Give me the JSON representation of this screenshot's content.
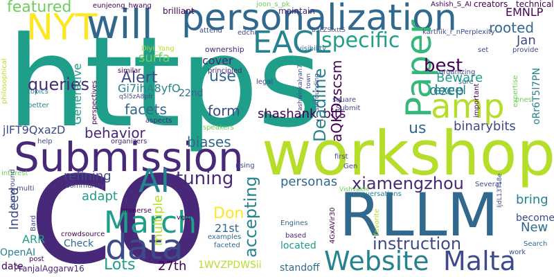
{
  "words": [
    "https",
    "co",
    "workshop",
    "Submission",
    "personalization",
    "RLLM",
    "Website",
    "Malta",
    "data",
    "will",
    "AI",
    "Paper",
    "March",
    "amp",
    "EACL",
    "NYT",
    "tuning",
    "instruction",
    "specific",
    "xiamengzhou",
    "featured",
    "queries",
    "best",
    "Alert",
    "Don",
    "behavior",
    "facets",
    "shashank_bits",
    "accepting",
    "Lots",
    "27th",
    "cover",
    "use",
    "form",
    "biases",
    "personas",
    "refining",
    "adapt",
    "multiple",
    "Deadline",
    "aQKDzscsm",
    "Beware",
    "excel",
    "deep",
    "rooted",
    "Jan",
    "EMNLP",
    "binarybits",
    "us",
    "bring",
    "Indeed",
    "ARR",
    "Check",
    "OpenAI",
    "date",
    "New",
    "become",
    "located",
    "standoff",
    "1WVZPDWSii",
    "PranjalAggarw16",
    "21st",
    "22nd",
    "jlFT9QxazD",
    "Gi7ihA8yfO",
    "Generative",
    "surfa",
    "creators",
    "technical",
    "maintain",
    "brilliant",
    "joon_s_pk",
    "Ashish_S_AI",
    "eunjeong_hwang",
    "karthik_r_nPerplexity",
    "b3cZSixttS",
    "edchi",
    "attend",
    "visibility",
    "set",
    "provide",
    "ownership",
    "Diyi_Yang",
    "principled",
    "similar",
    "q5l5zA8pfr",
    "perspectives",
    "legal",
    "sure",
    "organizing",
    "aspects",
    "ashwinkalyan7",
    "town",
    "surrounding",
    "square",
    "Submit",
    "expertise",
    "important",
    "oRr6T5l7PN",
    "speakers",
    "organizers",
    "help",
    "topics",
    "better",
    "philosophical",
    "interest",
    "multi",
    "community",
    "crowdsource",
    "immerse",
    "vein",
    "VishvakM",
    "rising",
    "conversations",
    "Several",
    "first",
    "Gen",
    "IjdL13T18e",
    "Engines",
    "faceted",
    "examples",
    "based",
    "work",
    "Search",
    "Bard",
    "post",
    "4GxAVir30",
    "favorite",
    "ones",
    "turnaround"
  ],
  "colors": {
    "purple": "#440154",
    "indigo": "#482878",
    "blue": "#3e4a89",
    "slate": "#31688e",
    "teal": "#26828e",
    "green": "#1f9e89",
    "mint": "#35b779",
    "lime": "#6ece58",
    "yellow": "#b5de2b",
    "gold": "#fde725"
  }
}
